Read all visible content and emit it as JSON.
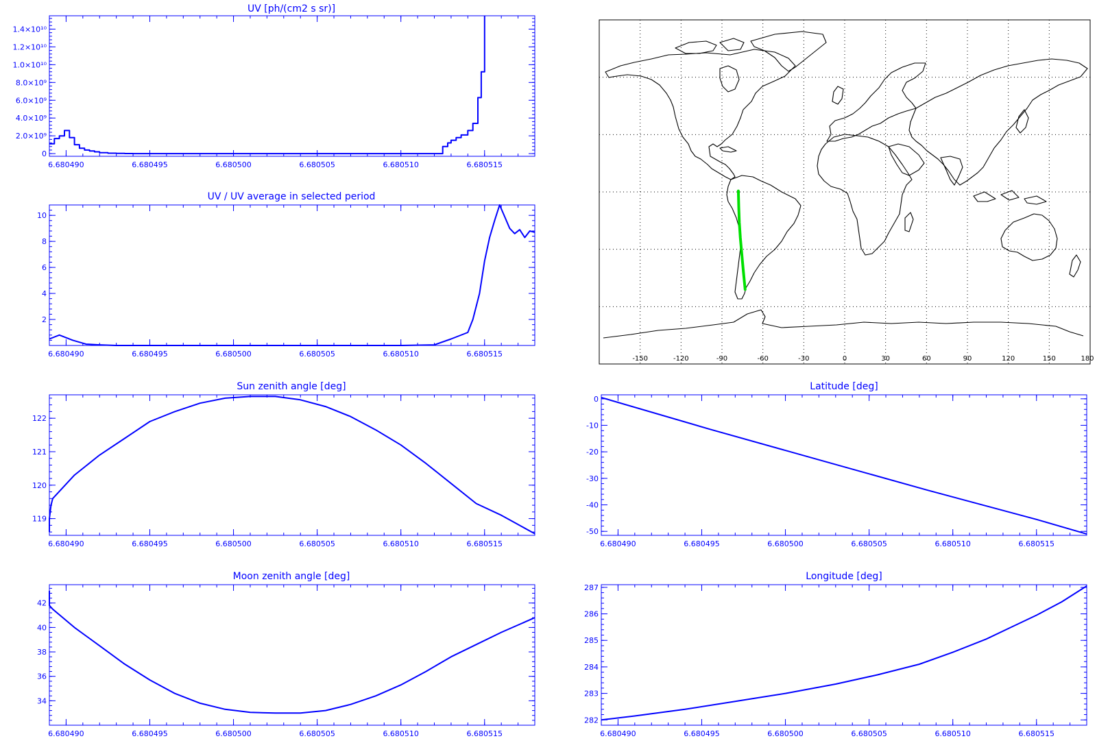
{
  "colors": {
    "axis": "#0000ff",
    "series": "#0000ff",
    "map_outline": "#000000",
    "map_grid": "#000000",
    "track": "#00e000"
  },
  "chart_data": [
    {
      "id": "uv",
      "type": "line",
      "step": true,
      "title": "UV [ph/(cm2 s sr)]",
      "xlabel": "",
      "ylabel": "",
      "xlim": [
        6.680489,
        6.680518
      ],
      "ylim": [
        -300000000.0,
        15500000000.0
      ],
      "xticks": [
        6.68049,
        6.680495,
        6.6805,
        6.680505,
        6.68051,
        6.680515
      ],
      "xtick_labels": [
        "6.680490",
        "6.680495",
        "6.680500",
        "6.680505",
        "6.680510",
        "6.680515"
      ],
      "yticks": [
        0,
        2000000000.0,
        4000000000.0,
        6000000000.0,
        8000000000.0,
        10000000000.0,
        12000000000.0,
        14000000000.0
      ],
      "ytick_labels": [
        "0",
        "2.0×10⁹",
        "4.0×10⁹",
        "6.0×10⁹",
        "8.0×10⁹",
        "1.0×10¹⁰",
        "1.2×10¹⁰",
        "1.4×10¹⁰"
      ],
      "series": [
        {
          "x": [
            6.680489,
            6.6804893,
            6.6804896,
            6.6804899,
            6.6804902,
            6.6804905,
            6.6804908,
            6.6804911,
            6.6804914,
            6.6804917,
            6.680492,
            6.6804925,
            6.680493,
            6.6804935,
            6.680494,
            6.680495,
            6.68051,
            6.6805125,
            6.6805128,
            6.680513,
            6.6805133,
            6.6805136,
            6.680514,
            6.6805143,
            6.6805146,
            6.6805148,
            6.680515
          ],
          "y": [
            1100000000.0,
            1700000000.0,
            2000000000.0,
            2600000000.0,
            1800000000.0,
            1000000000.0,
            600000000.0,
            400000000.0,
            300000000.0,
            200000000.0,
            100000000.0,
            50000000.0,
            20000000.0,
            10000000.0,
            0,
            0,
            0,
            800000000.0,
            1200000000.0,
            1500000000.0,
            1800000000.0,
            2100000000.0,
            2600000000.0,
            3400000000.0,
            6300000000.0,
            9200000000.0,
            15500000000.0
          ]
        }
      ]
    },
    {
      "id": "uv-ratio",
      "type": "line",
      "title": "UV / UV average in selected period",
      "xlabel": "",
      "ylabel": "",
      "xlim": [
        6.680489,
        6.680518
      ],
      "ylim": [
        0,
        10.8
      ],
      "xticks": [
        6.68049,
        6.680495,
        6.6805,
        6.680505,
        6.68051,
        6.680515
      ],
      "xtick_labels": [
        "6.680490",
        "6.680495",
        "6.680500",
        "6.680505",
        "6.680510",
        "6.680515"
      ],
      "yticks": [
        2,
        4,
        6,
        8,
        10
      ],
      "ytick_labels": [
        "2",
        "4",
        "6",
        "8",
        "10"
      ],
      "series": [
        {
          "x": [
            6.680489,
            6.6804896,
            6.6804904,
            6.6804912,
            6.680492,
            6.680493,
            6.680495,
            6.680505,
            6.68051,
            6.680512,
            6.680513,
            6.680514,
            6.6805143,
            6.6805147,
            6.680515,
            6.6805153,
            6.6805156,
            6.6805159,
            6.6805162,
            6.6805165,
            6.6805168,
            6.6805171,
            6.6805174,
            6.6805177,
            6.680518
          ],
          "y": [
            0.5,
            0.8,
            0.4,
            0.1,
            0.05,
            0,
            0,
            0,
            0,
            0.05,
            0.5,
            1.0,
            2.0,
            4.0,
            6.5,
            8.3,
            9.6,
            10.8,
            9.9,
            9.0,
            8.6,
            8.9,
            8.3,
            8.8,
            8.7
          ]
        }
      ]
    },
    {
      "id": "sun-zenith",
      "type": "line",
      "title": "Sun zenith angle [deg]",
      "xlabel": "",
      "ylabel": "",
      "xlim": [
        6.680489,
        6.680518
      ],
      "ylim": [
        118.5,
        122.7
      ],
      "xticks": [
        6.68049,
        6.680495,
        6.6805,
        6.680505,
        6.68051,
        6.680515
      ],
      "xtick_labels": [
        "6.680490",
        "6.680495",
        "6.680500",
        "6.680505",
        "6.680510",
        "6.680515"
      ],
      "yticks": [
        119,
        120,
        121,
        122
      ],
      "ytick_labels": [
        "119",
        "120",
        "121",
        "122"
      ],
      "series": [
        {
          "x": [
            6.680489,
            6.680489,
            6.6804891,
            6.6804892,
            6.6804905,
            6.680492,
            6.6804935,
            6.680495,
            6.6804965,
            6.680498,
            6.6804995,
            6.680501,
            6.6805025,
            6.680504,
            6.6805055,
            6.680507,
            6.6805085,
            6.68051,
            6.6805115,
            6.680513,
            6.6805145,
            6.680516,
            6.680518
          ],
          "y": [
            118.6,
            119.0,
            119.4,
            119.6,
            120.3,
            120.9,
            121.4,
            121.9,
            122.2,
            122.45,
            122.6,
            122.65,
            122.65,
            122.55,
            122.35,
            122.05,
            121.65,
            121.2,
            120.65,
            120.05,
            119.45,
            119.1,
            118.55
          ]
        }
      ]
    },
    {
      "id": "latitude",
      "type": "line",
      "title": "Latitude [deg]",
      "xlabel": "",
      "ylabel": "",
      "xlim": [
        6.680489,
        6.680518
      ],
      "ylim": [
        -51.5,
        1.5
      ],
      "xticks": [
        6.68049,
        6.680495,
        6.6805,
        6.680505,
        6.68051,
        6.680515
      ],
      "xtick_labels": [
        "6.680490",
        "6.680495",
        "6.680500",
        "6.680505",
        "6.680510",
        "6.680515"
      ],
      "yticks": [
        -50,
        -40,
        -30,
        -20,
        -10,
        0
      ],
      "ytick_labels": [
        "-50",
        "-40",
        "-30",
        "-20",
        "-10",
        "0"
      ],
      "series": [
        {
          "x": [
            6.680489,
            6.6804955,
            6.680502,
            6.6805085,
            6.680515,
            6.680518
          ],
          "y": [
            0.5,
            -11.5,
            -23.0,
            -34.5,
            -45.5,
            -51.0
          ]
        }
      ]
    },
    {
      "id": "moon-zenith",
      "type": "line",
      "title": "Moon zenith angle [deg]",
      "xlabel": "",
      "ylabel": "",
      "xlim": [
        6.680489,
        6.680518
      ],
      "ylim": [
        32.0,
        43.5
      ],
      "xticks": [
        6.68049,
        6.680495,
        6.6805,
        6.680505,
        6.68051,
        6.680515
      ],
      "xtick_labels": [
        "6.680490",
        "6.680495",
        "6.680500",
        "6.680505",
        "6.680510",
        "6.680515"
      ],
      "yticks": [
        34,
        36,
        38,
        40,
        42
      ],
      "ytick_labels": [
        "34",
        "36",
        "38",
        "40",
        "42"
      ],
      "series": [
        {
          "x": [
            6.680489,
            6.680489,
            6.6804892,
            6.6804905,
            6.680492,
            6.6804935,
            6.680495,
            6.6804965,
            6.680498,
            6.6804995,
            6.680501,
            6.6805025,
            6.680504,
            6.6805055,
            6.680507,
            6.6805085,
            6.68051,
            6.6805115,
            6.680513,
            6.6805145,
            6.680516,
            6.680518
          ],
          "y": [
            43.0,
            41.8,
            41.5,
            40.0,
            38.5,
            37.0,
            35.7,
            34.6,
            33.8,
            33.3,
            33.05,
            33.0,
            33.0,
            33.2,
            33.7,
            34.4,
            35.3,
            36.4,
            37.6,
            38.6,
            39.6,
            40.8
          ]
        }
      ]
    },
    {
      "id": "longitude",
      "type": "line",
      "title": "Longitude [deg]",
      "xlabel": "",
      "ylabel": "",
      "xlim": [
        6.680489,
        6.680518
      ],
      "ylim": [
        281.8,
        287.1
      ],
      "xticks": [
        6.68049,
        6.680495,
        6.6805,
        6.680505,
        6.68051,
        6.680515
      ],
      "xtick_labels": [
        "6.680490",
        "6.680495",
        "6.680500",
        "6.680505",
        "6.680510",
        "6.680515"
      ],
      "yticks": [
        282,
        283,
        284,
        285,
        286,
        287
      ],
      "ytick_labels": [
        "282",
        "283",
        "284",
        "285",
        "286",
        "287"
      ],
      "series": [
        {
          "x": [
            6.680489,
            6.680491,
            6.680494,
            6.680497,
            6.6805,
            6.680503,
            6.6805055,
            6.680508,
            6.68051,
            6.680512,
            6.6805135,
            6.680515,
            6.6805165,
            6.680518
          ],
          "y": [
            282.0,
            282.15,
            282.4,
            282.7,
            283.0,
            283.35,
            283.7,
            284.1,
            284.55,
            285.05,
            285.5,
            285.95,
            286.45,
            287.05
          ]
        }
      ]
    },
    {
      "id": "ground-track-map",
      "type": "map",
      "title": "",
      "projection": "cylindrical",
      "xlim": [
        -180,
        180
      ],
      "ylim": [
        -90,
        90
      ],
      "xticks": [
        -150,
        -120,
        -90,
        -60,
        -30,
        0,
        30,
        60,
        90,
        120,
        150,
        180
      ],
      "xtick_labels": [
        "-150",
        "-120",
        "-90",
        "-60",
        "-30",
        "0",
        "30",
        "60",
        "90",
        "120",
        "150",
        "180"
      ],
      "grid": true,
      "grid_lon_step": 30,
      "grid_lat": [
        -60,
        -30,
        0,
        30,
        60
      ],
      "track": {
        "lon": [
          -78.0,
          -77.7,
          -77.3,
          -76.5,
          -75.5,
          -74.5,
          -73.0
        ],
        "lat": [
          0.5,
          -8.0,
          -16.0,
          -24.0,
          -32.0,
          -40.0,
          -51.0
        ]
      }
    }
  ]
}
